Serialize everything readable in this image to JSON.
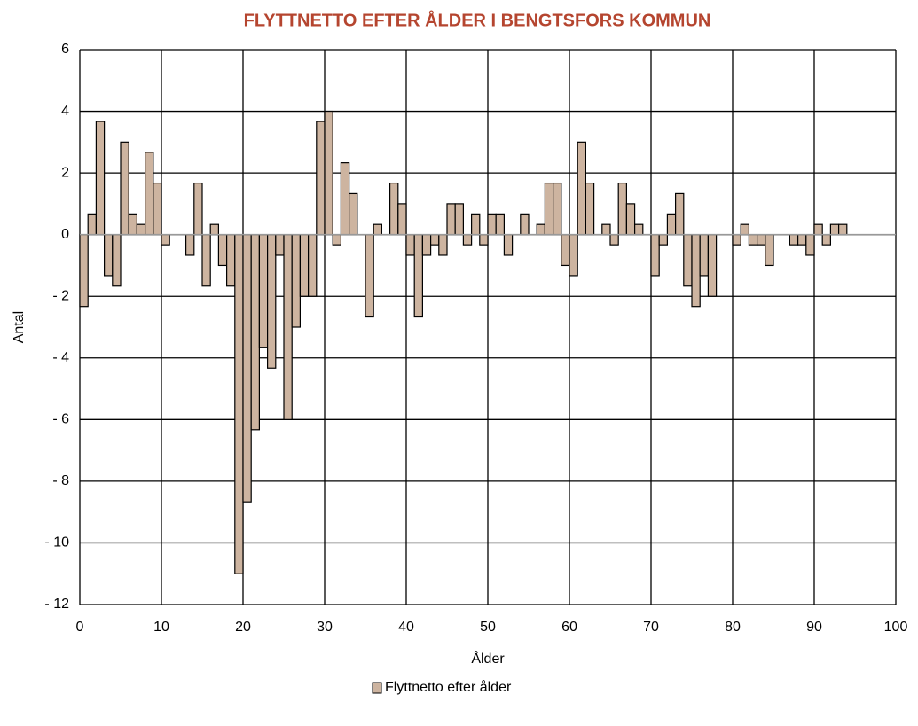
{
  "chart_data": {
    "type": "bar",
    "title": "FLYTTNETTO EFTER ÅLDER I BENGTSFORS KOMMUN",
    "title_color": "#b5452f",
    "x_label": "Ålder",
    "y_label": "Antal",
    "x": [
      0,
      1,
      2,
      3,
      4,
      5,
      6,
      7,
      8,
      9,
      10,
      11,
      12,
      13,
      14,
      15,
      16,
      17,
      18,
      19,
      20,
      21,
      22,
      23,
      24,
      25,
      26,
      27,
      28,
      29,
      30,
      31,
      32,
      33,
      34,
      35,
      36,
      37,
      38,
      39,
      40,
      41,
      42,
      43,
      44,
      45,
      46,
      47,
      48,
      49,
      50,
      51,
      52,
      53,
      54,
      55,
      56,
      57,
      58,
      59,
      60,
      61,
      62,
      63,
      64,
      65,
      66,
      67,
      68,
      69,
      70,
      71,
      72,
      73,
      74,
      75,
      76,
      77,
      78,
      79,
      80,
      81,
      82,
      83,
      84,
      85,
      86,
      87,
      88,
      89,
      90,
      91,
      92,
      93
    ],
    "series": [
      {
        "name": "Flyttnetto efter ålder",
        "color": "#cdb4a0",
        "values": [
          -2.33,
          0.67,
          3.67,
          -1.33,
          -1.67,
          3,
          0.67,
          0.33,
          2.67,
          1.67,
          -0.33,
          0,
          0,
          -0.67,
          1.67,
          -1.67,
          0.33,
          -1,
          -1.67,
          -11,
          -8.67,
          -6.33,
          -3.67,
          -4.33,
          -0.67,
          -6,
          -3,
          -2,
          -2,
          3.67,
          4,
          -0.33,
          2.33,
          1.33,
          0,
          -2.67,
          0.33,
          0,
          1.67,
          1,
          -0.67,
          -2.67,
          -0.67,
          -0.33,
          -0.67,
          1,
          1,
          -0.33,
          0.67,
          -0.33,
          0.67,
          0.67,
          -0.67,
          0,
          0.67,
          0,
          0.33,
          1.67,
          1.67,
          -1,
          -1.33,
          3,
          1.67,
          0,
          0.33,
          -0.33,
          1.67,
          1,
          0.33,
          0,
          -1.33,
          -0.33,
          0.67,
          1.33,
          -1.67,
          -2.33,
          -1.33,
          -2,
          0,
          0,
          -0.33,
          0.33,
          -0.33,
          -0.33,
          -1,
          0,
          0,
          -0.33,
          -0.33,
          -0.67,
          0.33,
          -0.33,
          0.33,
          0.33
        ]
      }
    ],
    "xlim": [
      0,
      100
    ],
    "xticks": [
      0,
      10,
      20,
      30,
      40,
      50,
      60,
      70,
      80,
      90,
      100
    ],
    "ylim": [
      -12,
      6
    ],
    "yticks": [
      6,
      4,
      2,
      0,
      {
        "value": -2,
        "label": "- 2"
      },
      {
        "value": -4,
        "label": "- 4"
      },
      {
        "value": -6,
        "label": "- 6"
      },
      {
        "value": -8,
        "label": "- 8"
      },
      {
        "value": -10,
        "label": "- 10"
      },
      {
        "value": -12,
        "label": "- 12"
      }
    ],
    "grid": true,
    "legend": "bottom"
  }
}
